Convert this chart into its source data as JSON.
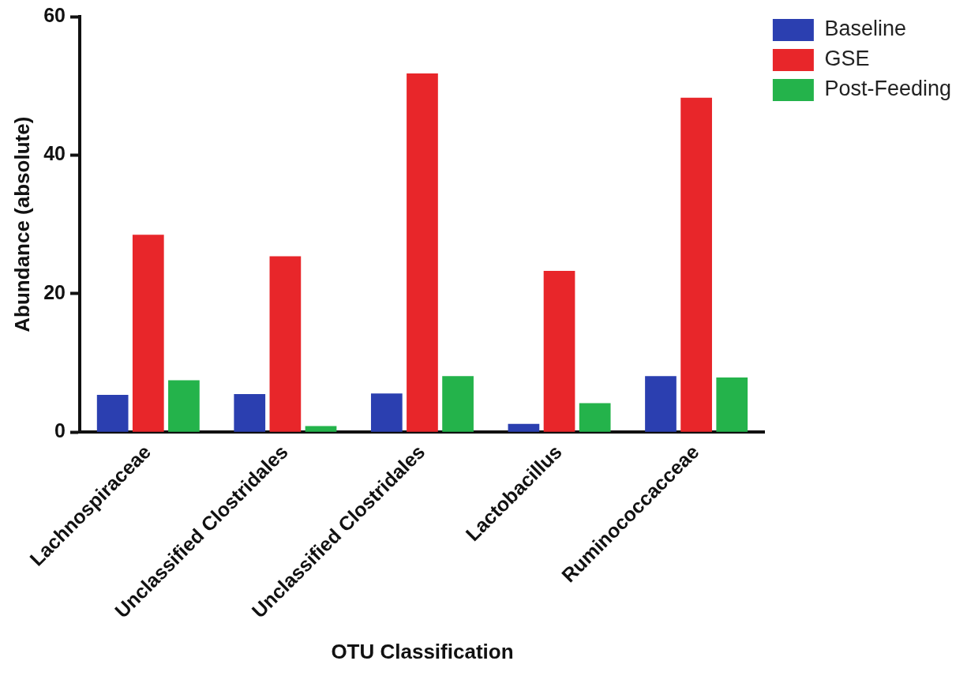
{
  "chart_data": {
    "type": "bar",
    "xlabel": "OTU Classification",
    "ylabel": "Abundance (absolute)",
    "categories": [
      "Lachnospiraceae",
      "Unclassified Clostridales",
      "Unclassified Clostridales",
      "Lactobacillus",
      "Ruminococcacceae"
    ],
    "series": [
      {
        "name": "Baseline",
        "color": "#2b3fb0",
        "values": [
          5.4,
          5.5,
          5.6,
          1.2,
          8.1
        ]
      },
      {
        "name": "GSE",
        "color": "#e8262a",
        "values": [
          28.5,
          25.4,
          51.8,
          23.3,
          48.3
        ]
      },
      {
        "name": "Post-Feeding",
        "color": "#24b34b",
        "values": [
          7.5,
          0.9,
          8.1,
          4.2,
          7.9
        ]
      }
    ],
    "ylim": [
      0,
      60
    ],
    "yticks": [
      0,
      20,
      40,
      60
    ],
    "grid": false,
    "legend": "top right"
  }
}
